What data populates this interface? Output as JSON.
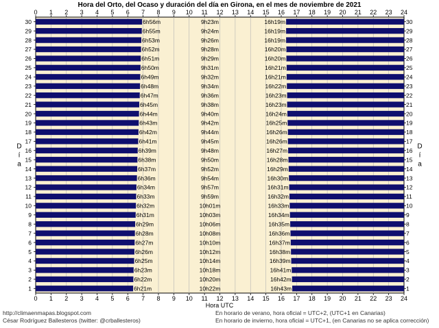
{
  "chart_data": {
    "type": "bar",
    "orientation": "horizontal",
    "title": "Hora del Orto, del Ocaso y duración del día en Girona, en el mes de noviembre de 2021",
    "xlabel": "Hora UTC",
    "ylabel": "Día",
    "xlim": [
      0,
      24
    ],
    "xticks": [
      "0",
      "1",
      "2",
      "3",
      "4",
      "5",
      "6",
      "7",
      "8",
      "9",
      "10",
      "11",
      "12",
      "13",
      "14",
      "15",
      "16",
      "17",
      "18",
      "19",
      "20",
      "21",
      "22",
      "23",
      "24"
    ],
    "days": [
      1,
      2,
      3,
      4,
      5,
      6,
      7,
      8,
      9,
      10,
      11,
      12,
      13,
      14,
      15,
      16,
      17,
      18,
      19,
      20,
      21,
      22,
      23,
      24,
      25,
      26,
      27,
      28,
      29,
      30
    ],
    "sunrise": [
      "6h21m",
      "6h22m",
      "6h23m",
      "6h25m",
      "6h26m",
      "6h27m",
      "6h28m",
      "6h29m",
      "6h31m",
      "6h32m",
      "6h33m",
      "6h34m",
      "6h36m",
      "6h37m",
      "6h38m",
      "6h39m",
      "6h41m",
      "6h42m",
      "6h43m",
      "6h44m",
      "6h45m",
      "6h47m",
      "6h48m",
      "6h49m",
      "6h50m",
      "6h51m",
      "6h52m",
      "6h53m",
      "6h55m",
      "6h56m"
    ],
    "daylength": [
      "10h22m",
      "10h20m",
      "10h18m",
      "10h14m",
      "10h12m",
      "10h10m",
      "10h08m",
      "10h06m",
      "10h03m",
      "10h01m",
      "9h59m",
      "9h57m",
      "9h54m",
      "9h52m",
      "9h50m",
      "9h48m",
      "9h45m",
      "9h44m",
      "9h42m",
      "9h40m",
      "9h38m",
      "9h36m",
      "9h34m",
      "9h32m",
      "9h31m",
      "9h29m",
      "9h28m",
      "9h26m",
      "9h24m",
      "9h23m"
    ],
    "sunset": [
      "16h43m",
      "16h42m",
      "16h41m",
      "16h39m",
      "16h38m",
      "16h37m",
      "16h36m",
      "16h35m",
      "16h34m",
      "16h33m",
      "16h32m",
      "16h31m",
      "16h30m",
      "16h29m",
      "16h28m",
      "16h27m",
      "16h26m",
      "16h26m",
      "16h25m",
      "16h24m",
      "16h23m",
      "16h23m",
      "16h22m",
      "16h21m",
      "16h21m",
      "16h20m",
      "16h20m",
      "16h19m",
      "16h19m",
      "16h19m"
    ],
    "grid": true,
    "colors": {
      "night_bar": "#0f0f6e",
      "background": "#faf0d2",
      "grid": "#b4b4b4"
    }
  },
  "footer": {
    "left_line1": "http://climaenmapas.blogspot.com",
    "left_line2": "César Rodríguez Ballesteros (twitter: @crballesteros)",
    "right_line1": "En horario de verano, hora oficial = UTC+2, (UTC+1 en Canarias)",
    "right_line2": "En horario de invierno, hora oficial = UTC+1, (en Canarias no se aplica corrección)"
  }
}
